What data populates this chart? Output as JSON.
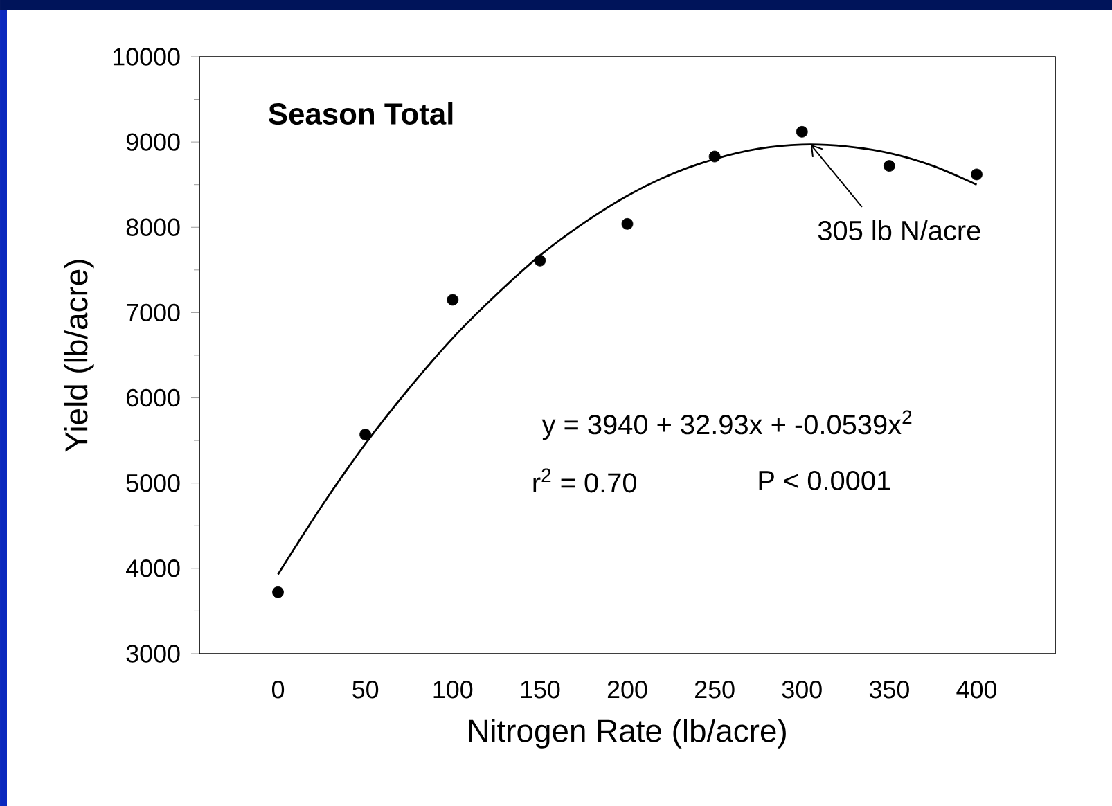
{
  "chart_data": {
    "type": "scatter",
    "title": "Season Total",
    "xlabel": "Nitrogen Rate (lb/acre)",
    "ylabel": "Yield (lb/acre)",
    "xlim": [
      -45,
      445
    ],
    "xticks": [
      0,
      50,
      100,
      150,
      200,
      250,
      300,
      350,
      400
    ],
    "ylim": [
      3000,
      10000
    ],
    "yticks": [
      3000,
      4000,
      5000,
      6000,
      7000,
      8000,
      9000,
      10000
    ],
    "series": [
      {
        "marker": "circle",
        "color": "#000000",
        "x": [
          0,
          50,
          100,
          150,
          200,
          250,
          300,
          350,
          400
        ],
        "values": [
          3720,
          5570,
          7150,
          7610,
          8040,
          8830,
          9120,
          8720,
          8620
        ]
      },
      {
        "type": "line",
        "marker": "none",
        "color": "#000000",
        "x": [
          0,
          25,
          50,
          75,
          100,
          125,
          150,
          175,
          200,
          225,
          250,
          275,
          300,
          325,
          350,
          375,
          400
        ],
        "values": [
          3930,
          4730,
          5460,
          6110,
          6700,
          7210,
          7670,
          8050,
          8370,
          8620,
          8800,
          8920,
          8970,
          8950,
          8870,
          8720,
          8500
        ]
      }
    ],
    "annotations": [
      {
        "text": "305 lb N/acre",
        "x": 305,
        "y": 8970
      },
      "y = 3940 + 32.93x + -0.0539x$^{2}$",
      "r$^{2}$ = 0.70",
      "P < 0.0001"
    ]
  }
}
